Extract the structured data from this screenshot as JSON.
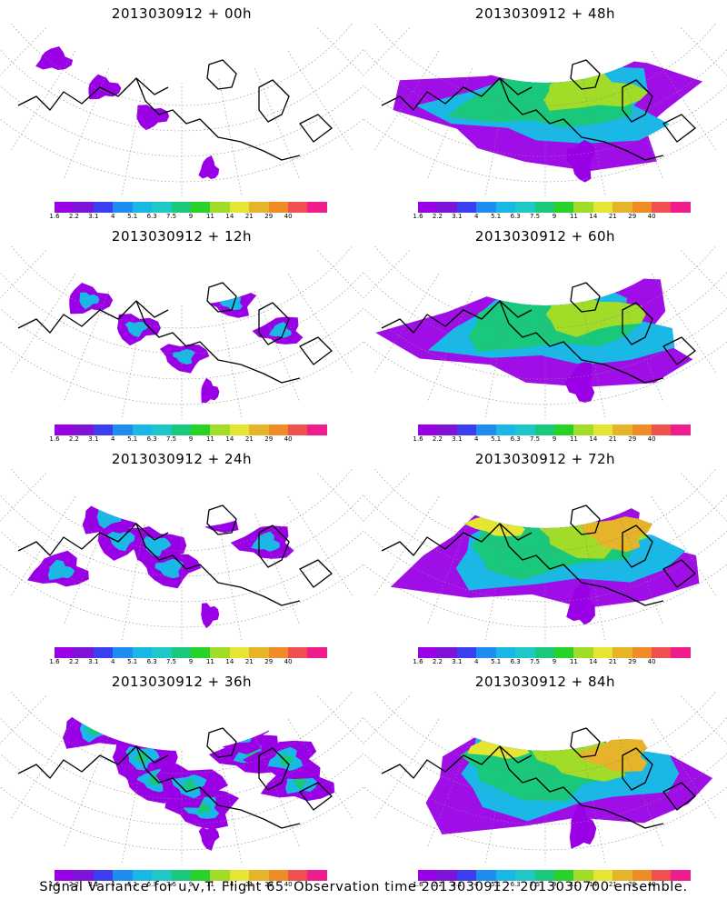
{
  "panels": [
    {
      "title": "2013030912 + 00h",
      "intensity": 0
    },
    {
      "title": "2013030912 + 48h",
      "intensity": 4
    },
    {
      "title": "2013030912 + 12h",
      "intensity": 1
    },
    {
      "title": "2013030912 + 60h",
      "intensity": 5
    },
    {
      "title": "2013030912 + 24h",
      "intensity": 2
    },
    {
      "title": "2013030912 + 72h",
      "intensity": 6
    },
    {
      "title": "2013030912 + 36h",
      "intensity": 3
    },
    {
      "title": "2013030912 + 84h",
      "intensity": 7
    }
  ],
  "colorbar": {
    "labels": [
      "1.6",
      "2.2",
      "3.1",
      "4",
      "5.1",
      "6.3",
      "7.5",
      "9",
      "11",
      "14",
      "21",
      "29",
      "40"
    ],
    "colors": [
      "#9a00e6",
      "#7d14d8",
      "#3b3ff0",
      "#1e8cf0",
      "#19b8e6",
      "#1ec8c8",
      "#19c87a",
      "#28d228",
      "#a0dc28",
      "#e6e632",
      "#e6b428",
      "#f08c28",
      "#f05050",
      "#f01e8c"
    ]
  },
  "caption": "Signal Variance for u,v,T. Flight 65. Observation time 2013030912. 2013030700 ensemble."
}
